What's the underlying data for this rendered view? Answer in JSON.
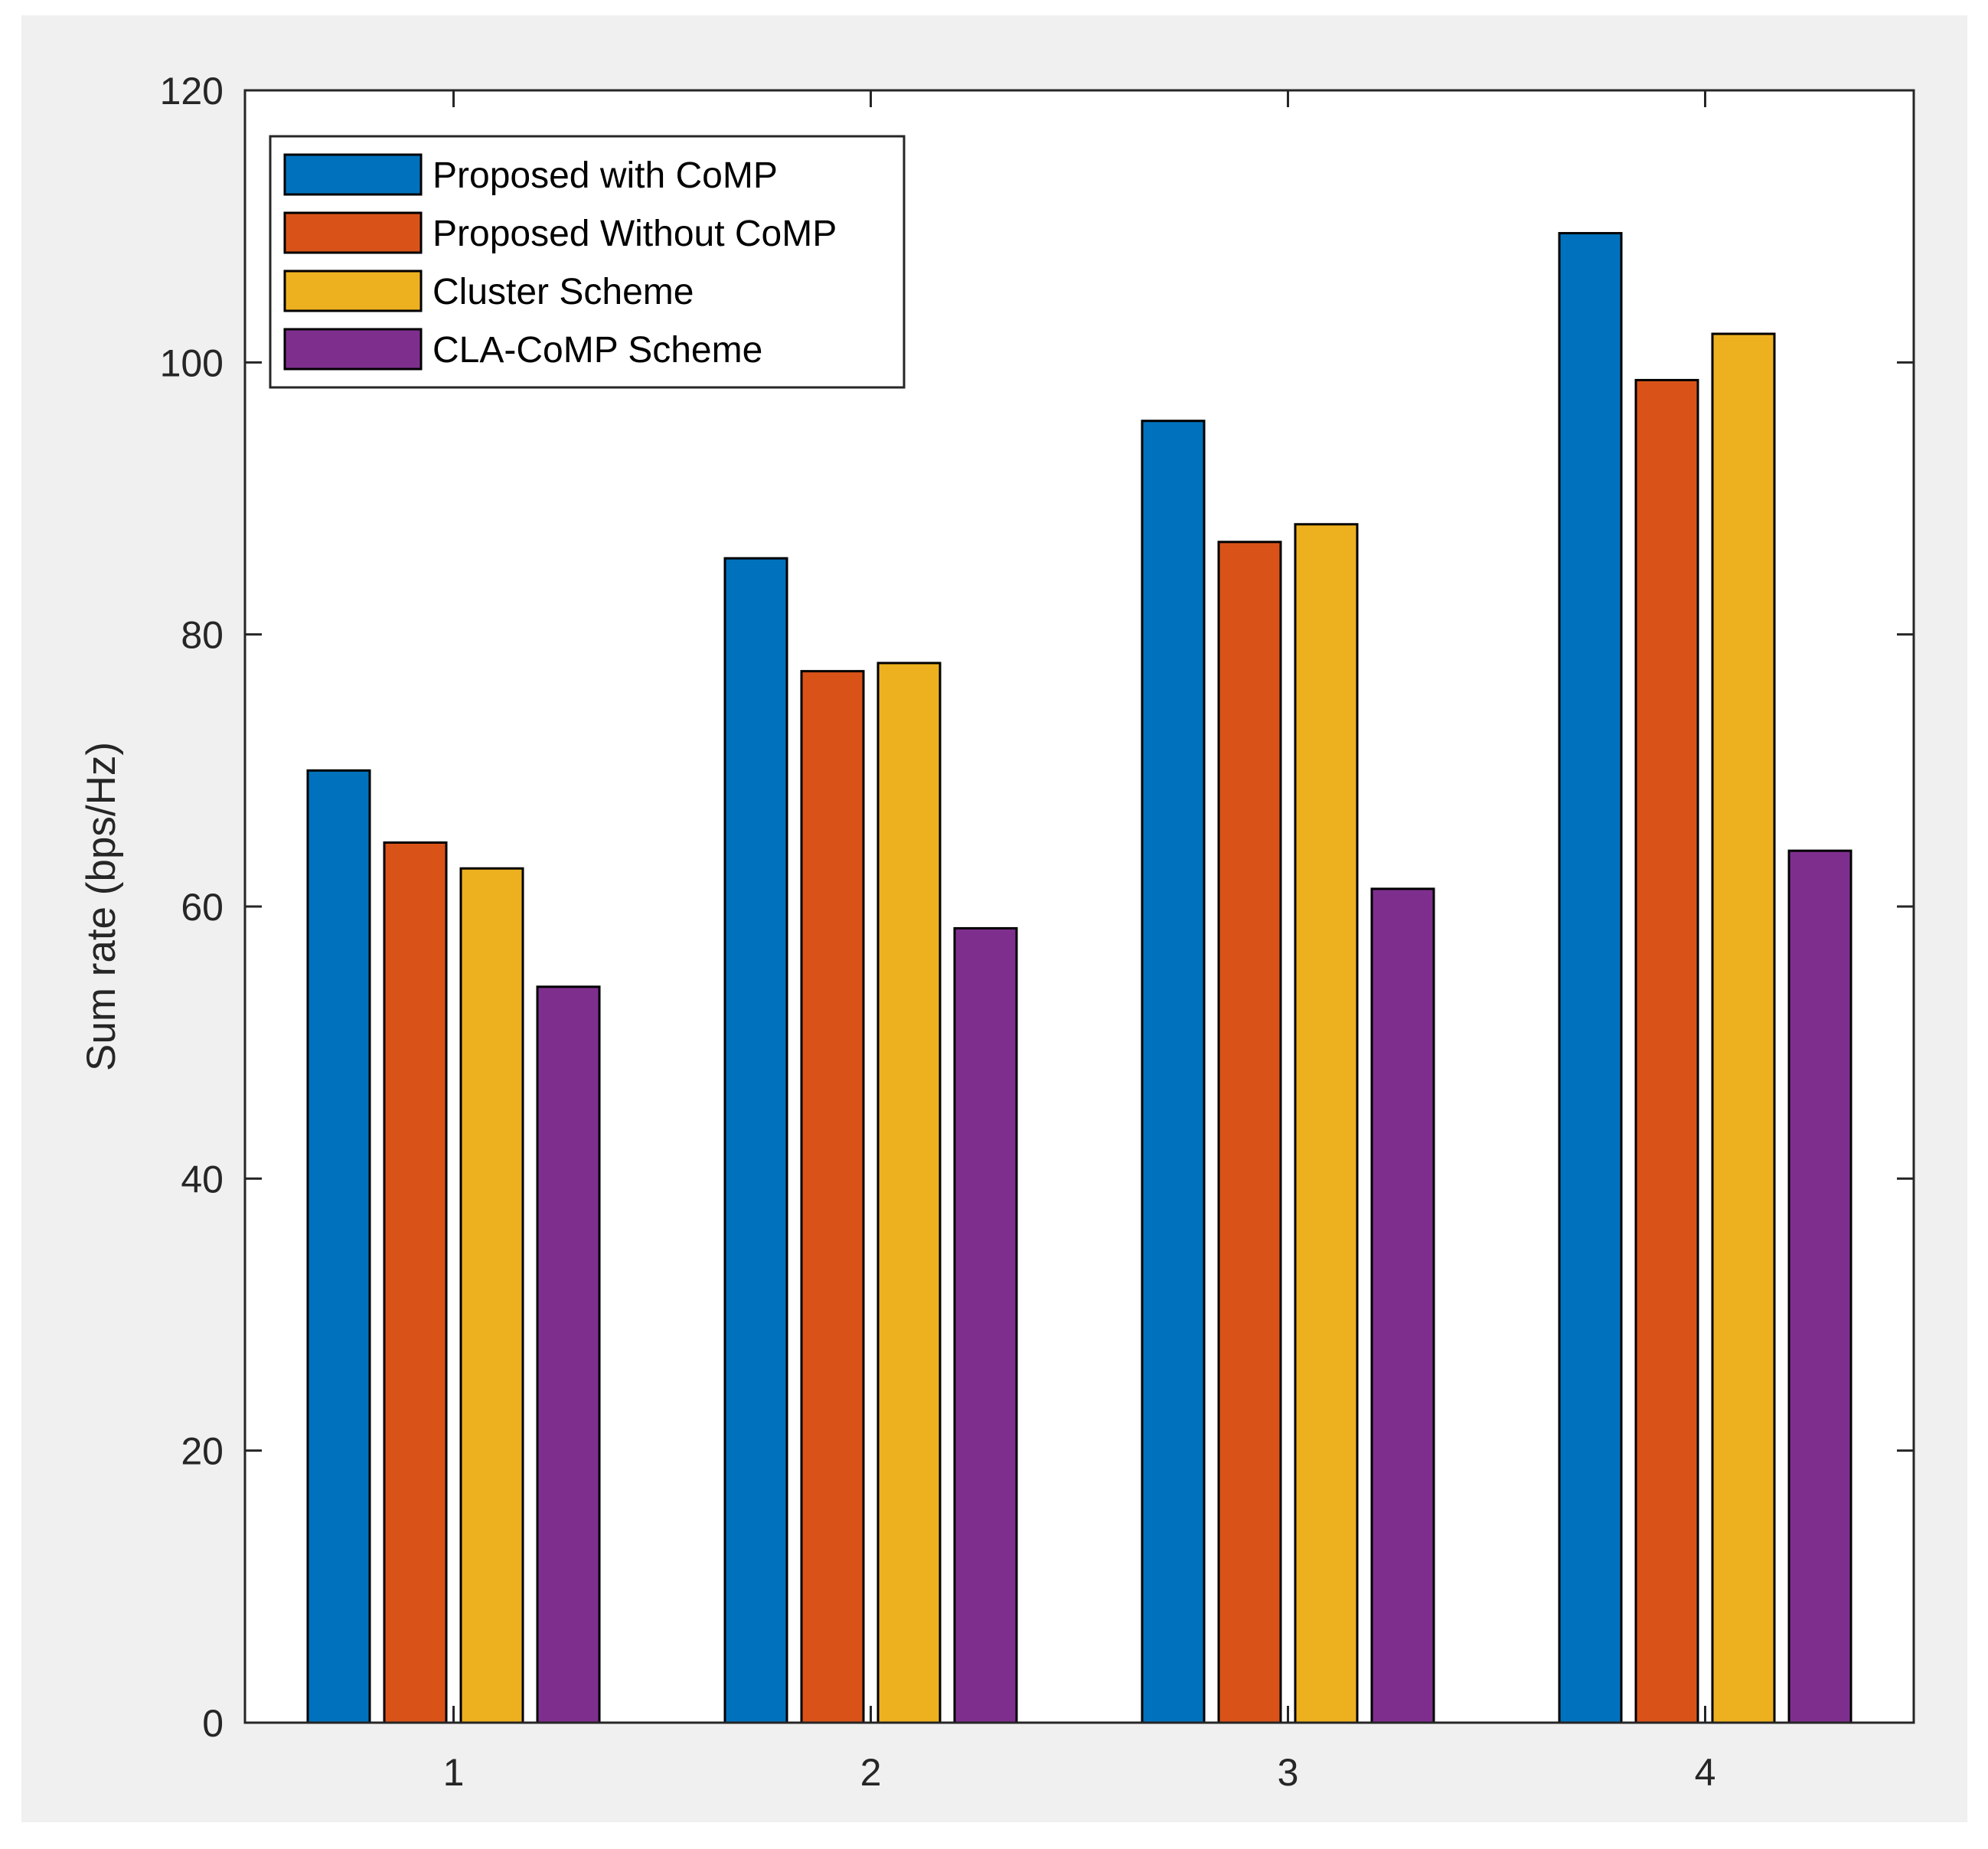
{
  "chart_data": {
    "type": "bar",
    "title": "",
    "xlabel": "",
    "ylabel": "Sum rate (bps/Hz)",
    "categories": [
      "1",
      "2",
      "3",
      "4"
    ],
    "ylim": [
      0,
      120
    ],
    "yticks": [
      "0",
      "20",
      "40",
      "60",
      "80",
      "100",
      "120"
    ],
    "grid": false,
    "legend_position": "top-left",
    "series": [
      {
        "name": "Proposed with CoMP",
        "color": "#0072bd",
        "values": [
          70,
          85.6,
          95.7,
          109.5
        ]
      },
      {
        "name": "Proposed Without CoMP",
        "color": "#d95319",
        "values": [
          64.7,
          77.3,
          86.8,
          98.7
        ]
      },
      {
        "name": "Cluster Scheme",
        "color": "#edb120",
        "values": [
          62.8,
          77.9,
          88.1,
          102.1
        ]
      },
      {
        "name": "CLA-CoMP Scheme",
        "color": "#7e2f8e",
        "values": [
          54.1,
          58.4,
          61.3,
          64.1
        ]
      }
    ]
  }
}
